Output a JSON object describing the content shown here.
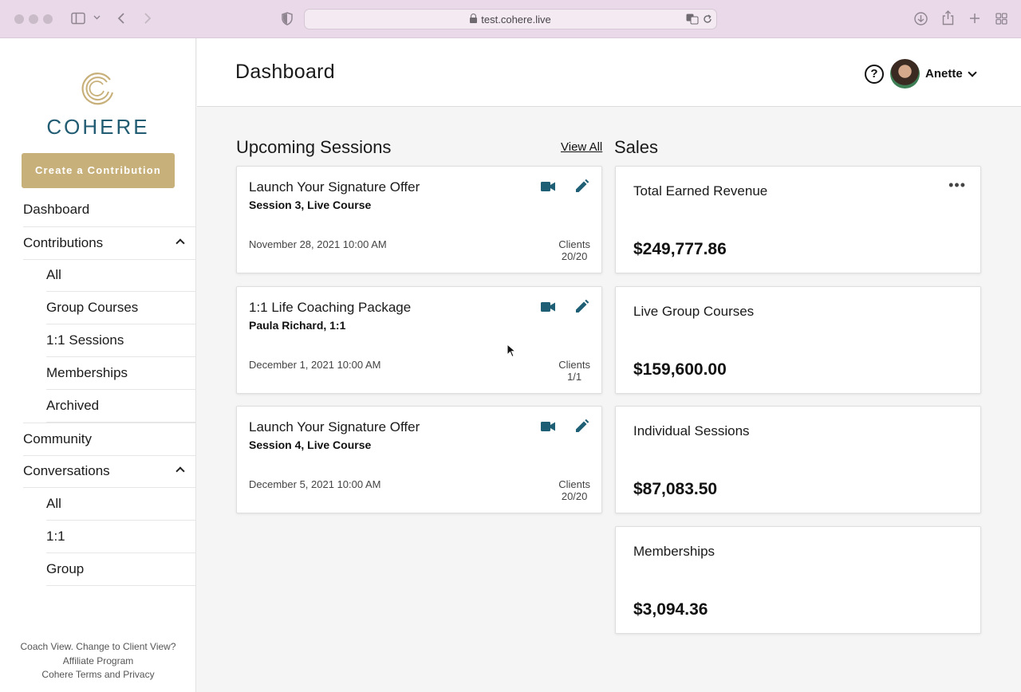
{
  "browser": {
    "url": "test.cohere.live"
  },
  "sidebar": {
    "logo_text": "COHERE",
    "create_button": "Create a Contribution",
    "nav": {
      "dashboard": "Dashboard",
      "contributions": "Contributions",
      "contributions_items": [
        "All",
        "Group Courses",
        "1:1 Sessions",
        "Memberships",
        "Archived"
      ],
      "community": "Community",
      "conversations": "Conversations",
      "conversations_items": [
        "All",
        "1:1",
        "Group"
      ]
    },
    "footer": {
      "coach_view": "Coach View. Change to Client View?",
      "affiliate": "Affiliate Program",
      "terms": "Cohere Terms and Privacy"
    }
  },
  "header": {
    "title": "Dashboard",
    "help_symbol": "?",
    "user_name": "Anette"
  },
  "sessions": {
    "title": "Upcoming Sessions",
    "view_all": "View All",
    "clients_label": "Clients",
    "items": [
      {
        "title": "Launch Your Signature Offer",
        "subtitle": "Session 3, Live Course",
        "date": "November 28, 2021 10:00 AM",
        "clients": "20/20"
      },
      {
        "title": "1:1 Life Coaching Package",
        "subtitle": "Paula Richard, 1:1",
        "date": "December 1, 2021 10:00 AM",
        "clients": "1/1"
      },
      {
        "title": "Launch Your Signature Offer",
        "subtitle": "Session 4, Live Course",
        "date": "December 5, 2021 10:00 AM",
        "clients": "20/20"
      }
    ]
  },
  "sales": {
    "title": "Sales",
    "more_symbol": "•••",
    "items": [
      {
        "label": "Total Earned Revenue",
        "value": "$249,777.86"
      },
      {
        "label": "Live Group Courses",
        "value": "$159,600.00"
      },
      {
        "label": "Individual Sessions",
        "value": "$87,083.50"
      },
      {
        "label": "Memberships",
        "value": "$3,094.36"
      }
    ]
  },
  "colors": {
    "brand_teal": "#215c73",
    "gold": "#c8b07a",
    "icon_teal": "#1f5f75",
    "chrome_pink": "#ead9e8"
  }
}
